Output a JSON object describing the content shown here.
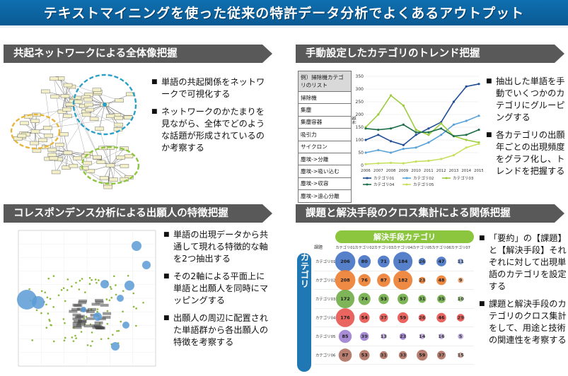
{
  "title": "テキストマイニングを使った従来の特許データ分析でよくあるアウトプット",
  "sections": {
    "s1": {
      "heading": "共起ネットワークによる全体像把握",
      "bullets": [
        "単語の共起関係をネットワークで可視化する",
        "ネットワークのかたまりを見ながら、全体でどのような話題が形成されているのか考察する"
      ]
    },
    "s2": {
      "heading": "手動設定したカテゴリのトレンド把握",
      "table_header": "例）掃除機カテゴリのリスト",
      "table_rows": [
        "掃除機",
        "集塵",
        "集塵容器",
        "吸引力",
        "サイクロン",
        "塵埃->分離",
        "塵埃->吸い込む",
        "塵埃->収容",
        "塵埃->遠心分離"
      ],
      "bullets": [
        "抽出した単語を手動でいくつかのカテゴリにグルーピングする",
        "各カテゴリの出願年ごとの出現頻度をグラフ化し、トレンドを把握する"
      ]
    },
    "s3": {
      "heading": "コレスポンデンス分析による出願人の特徴把握",
      "bullets": [
        "単語の出現データから共通して現れる特徴的な軸を2つ抽出する",
        "その2軸による平面上に単語と出願人を同時にマッピングする",
        "出願人の周辺に配置された単語群から各出願人の特徴を考察する"
      ]
    },
    "s4": {
      "heading": "課題と解決手段のクロス集計による関係把握",
      "bullets": [
        "「要約」の【課題】と【解決手段】それぞれに対して出現単語のカテゴリを設定する",
        "課題と解決手段のカテゴリのクロス集計をして、用途と技術の関連性を考察する"
      ]
    }
  },
  "chart_data": [
    {
      "type": "line",
      "x": [
        "2006",
        "2007",
        "2008",
        "2009",
        "2010",
        "2011",
        "2012",
        "2013",
        "2014",
        "2015"
      ],
      "ylim": [
        0,
        350
      ],
      "yticks": [
        "0",
        "50",
        "100",
        "150",
        "200",
        "250",
        "300",
        "350"
      ],
      "ylabel": "件数",
      "series": [
        {
          "name": "カテゴリ01",
          "color": "#1f4e96",
          "values": [
            100,
            120,
            95,
            80,
            120,
            145,
            170,
            250,
            310,
            320
          ]
        },
        {
          "name": "カテゴリ02",
          "color": "#5ba3d9",
          "values": [
            50,
            60,
            50,
            65,
            70,
            90,
            120,
            160,
            175,
            195
          ]
        },
        {
          "name": "カテゴリ03",
          "color": "#9ccc3c",
          "values": [
            150,
            200,
            275,
            235,
            140,
            120,
            165,
            115,
            100,
            90
          ]
        },
        {
          "name": "カテゴリ04",
          "color": "#1e6f4a",
          "values": [
            145,
            140,
            145,
            160,
            130,
            130,
            145,
            115,
            120,
            140
          ]
        },
        {
          "name": "カテゴリ05",
          "color": "#c7e05c",
          "values": [
            5,
            8,
            10,
            8,
            15,
            18,
            25,
            40,
            70,
            85
          ]
        }
      ]
    },
    {
      "type": "heatmap",
      "title": "解決手段カテゴリ",
      "ylabel": "課題カテゴリ",
      "corner": "課題",
      "x": [
        "カテゴリ01",
        "カテゴリ02",
        "カテゴリ03",
        "カテゴリ04",
        "カテゴリ05",
        "カテゴリ06",
        "カテゴリ07"
      ],
      "y": [
        "カテゴリ01",
        "カテゴリ02",
        "カテゴリ03",
        "カテゴリ04",
        "カテゴリ05",
        "カテゴリ06"
      ],
      "row_colors": [
        "#4472c4",
        "#ed7d31",
        "#70ad47",
        "#e8534f",
        "#9e7fd1",
        "#b07060"
      ],
      "values": [
        [
          206,
          80,
          71,
          184,
          26,
          47,
          11
        ],
        [
          208,
          76,
          87,
          182,
          23,
          48,
          9
        ],
        [
          172,
          74,
          53,
          57,
          31,
          35,
          10
        ],
        [
          176,
          54,
          37,
          59,
          26,
          46,
          29
        ],
        [
          85,
          39,
          13,
          23,
          14,
          16,
          5
        ],
        [
          87,
          53,
          31,
          33,
          59,
          37,
          15
        ]
      ]
    }
  ]
}
